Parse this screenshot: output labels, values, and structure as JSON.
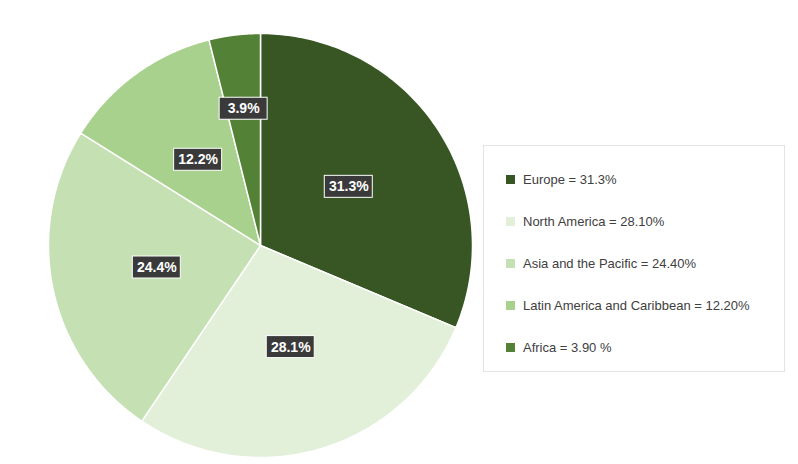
{
  "chart_data": {
    "type": "pie",
    "categories": [
      "Europe = 31.3%",
      "North America = 28.10%",
      "Asia and the Pacific = 24.40%",
      "Latin America and Caribbean = 12.20%",
      "Africa = 3.90 %"
    ],
    "values": [
      31.3,
      28.1,
      24.4,
      12.2,
      3.9
    ],
    "value_labels": [
      "31.3%",
      "28.1%",
      "24.4%",
      "12.2%",
      "3.9%"
    ],
    "colors": [
      "#375623",
      "#e2efd9",
      "#c5e0b3",
      "#a9d18e",
      "#538135"
    ],
    "data_labels": true,
    "legend": "right"
  }
}
